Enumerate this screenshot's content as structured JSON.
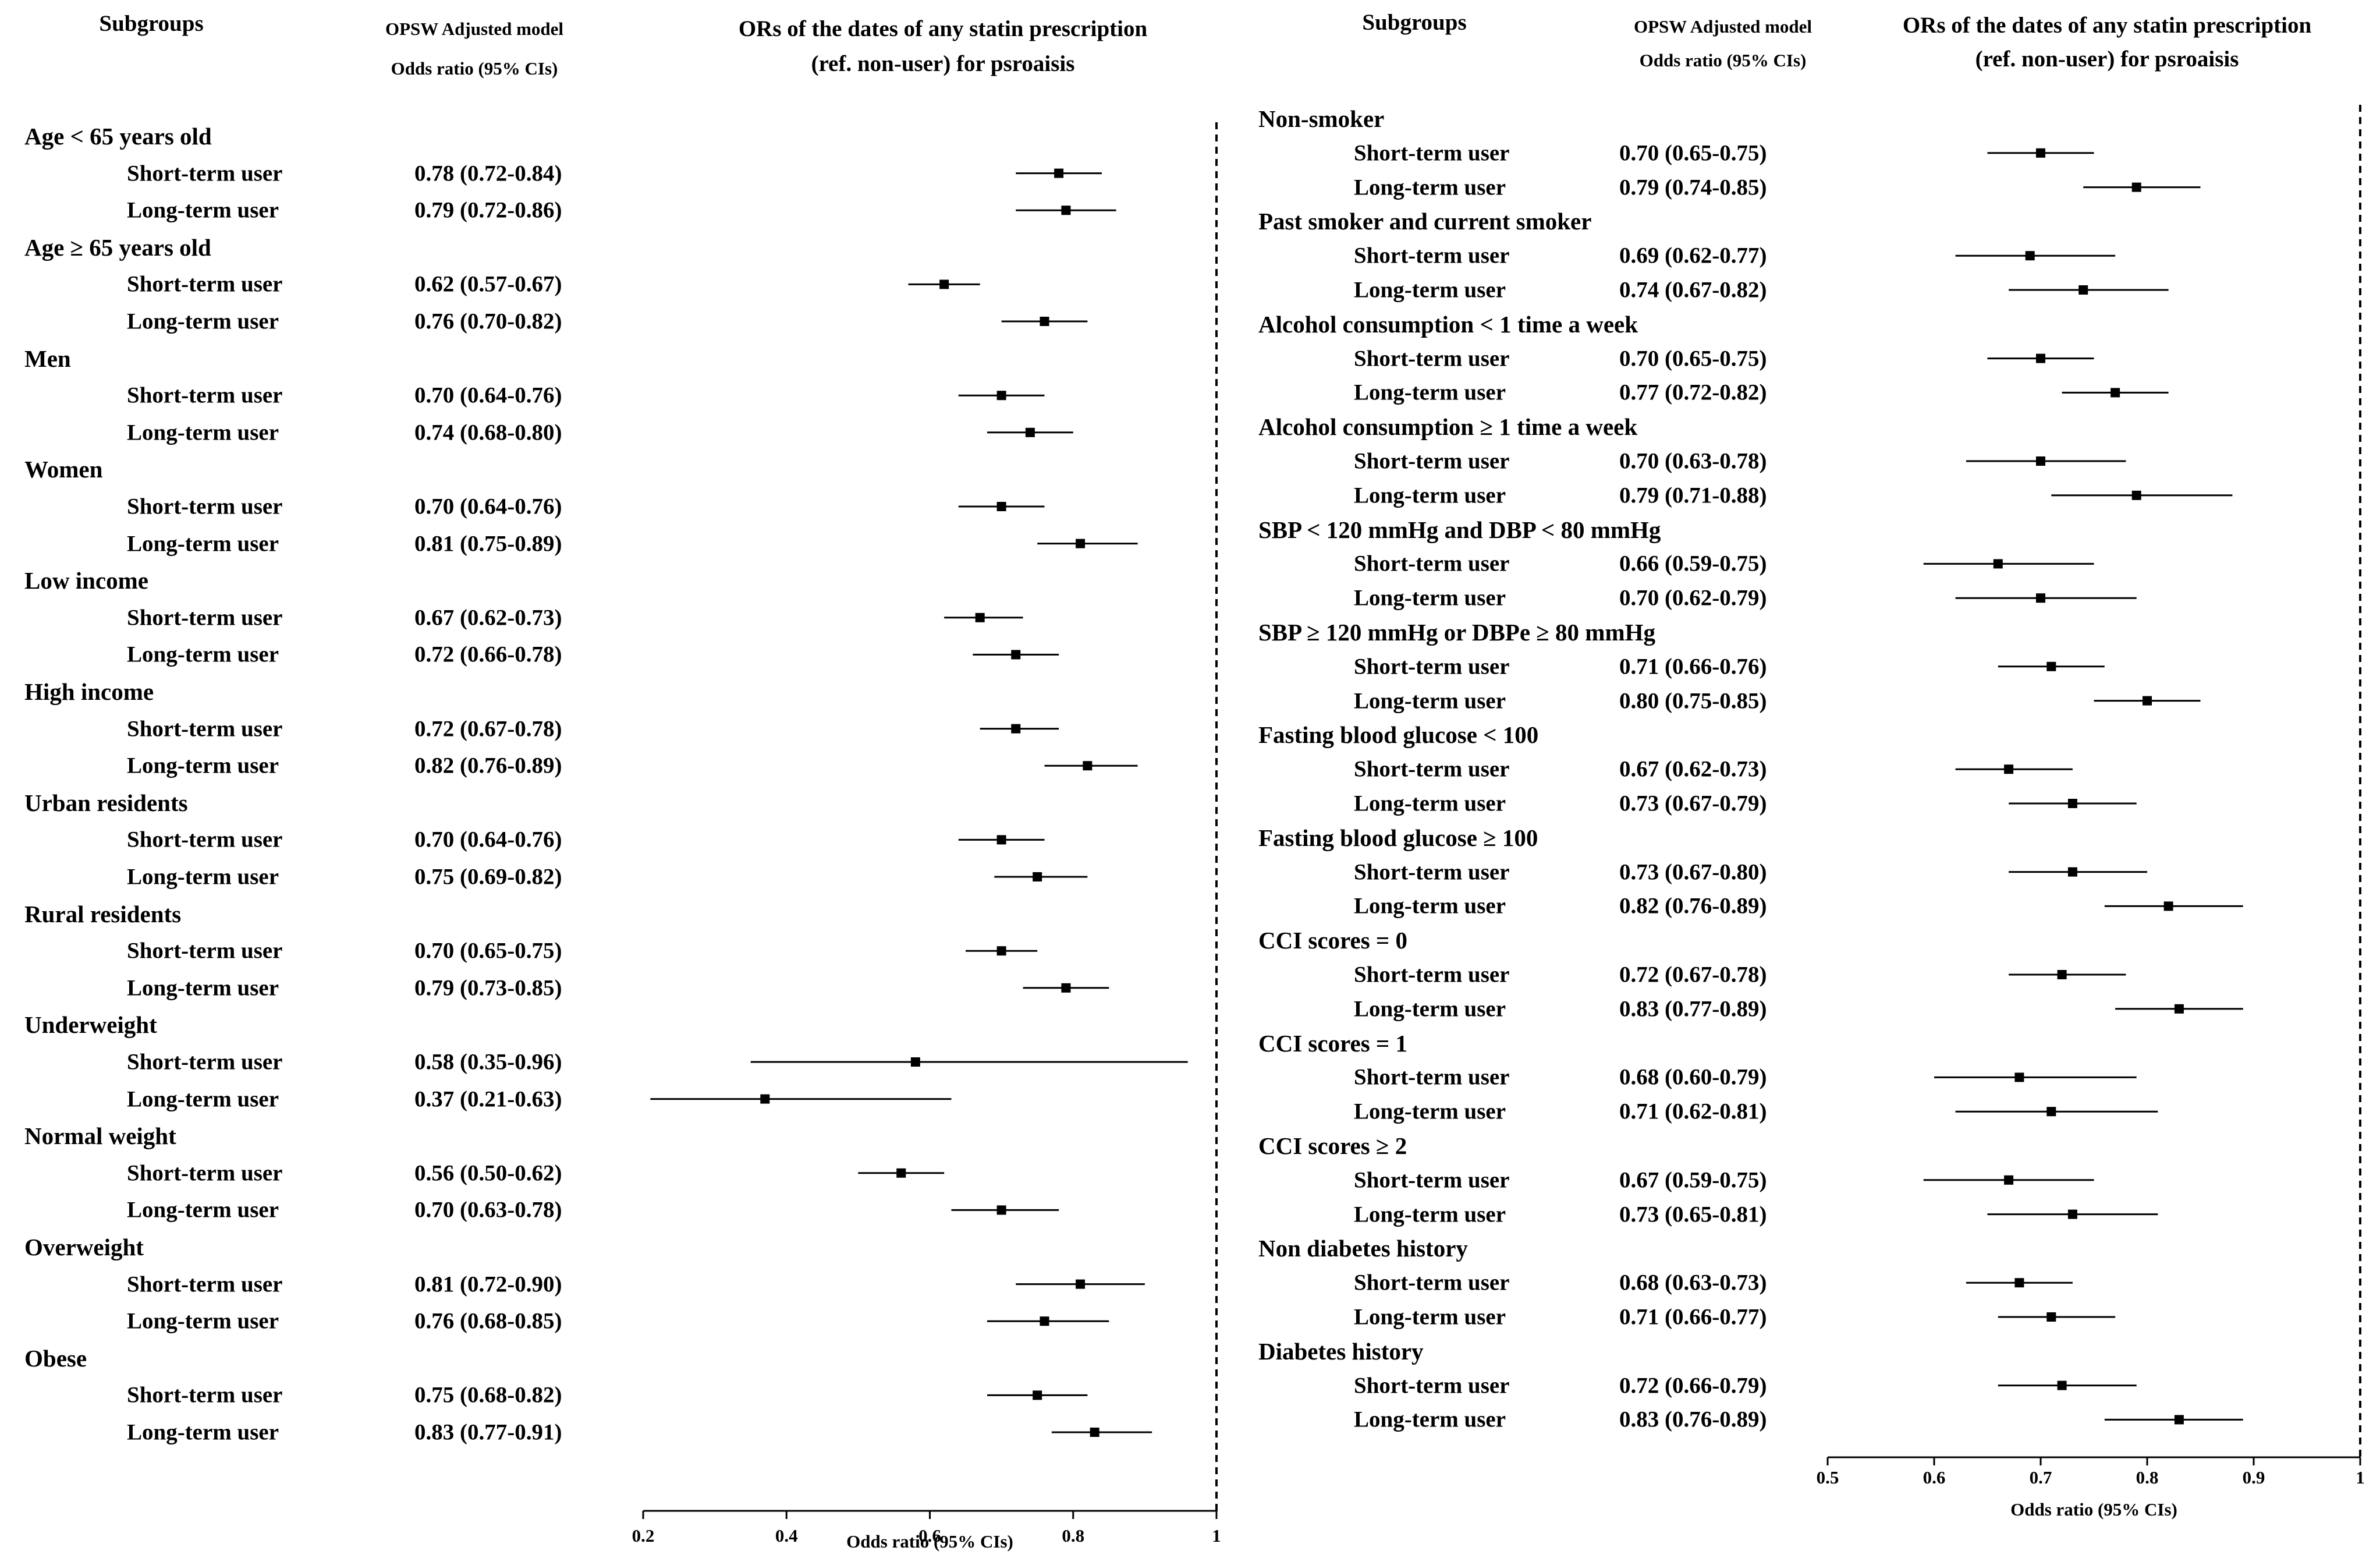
{
  "chart_data": [
    {
      "type": "forest",
      "header": {
        "subgroups": "Subgroups",
        "model_line1": "OPSW Adjusted model",
        "model_line2": "Odds ratio (95% CIs)",
        "chart_line1": "ORs of the dates of any statin prescription",
        "chart_line2": "(ref. non-user) for psroaisis"
      },
      "xlabel": "Odds ratio (95% CIs)",
      "xlim": [
        0.2,
        1.0
      ],
      "xticks": [
        0.2,
        0.4,
        0.6,
        0.8,
        1.0
      ],
      "xtick_labels": [
        "0.2",
        "0.4",
        "0.6",
        "0.8",
        "1"
      ],
      "reference_line": 1.0,
      "groups": [
        {
          "name": "Age < 65 years old",
          "rows": [
            {
              "label": "Short-term user",
              "text": "0.78 (0.72-0.84)",
              "or": 0.78,
              "lo": 0.72,
              "hi": 0.84
            },
            {
              "label": "Long-term user",
              "text": "0.79 (0.72-0.86)",
              "or": 0.79,
              "lo": 0.72,
              "hi": 0.86
            }
          ]
        },
        {
          "name": "Age ≥ 65 years old",
          "rows": [
            {
              "label": "Short-term user",
              "text": "0.62 (0.57-0.67)",
              "or": 0.62,
              "lo": 0.57,
              "hi": 0.67
            },
            {
              "label": "Long-term user",
              "text": "0.76 (0.70-0.82)",
              "or": 0.76,
              "lo": 0.7,
              "hi": 0.82
            }
          ]
        },
        {
          "name": "Men",
          "rows": [
            {
              "label": "Short-term user",
              "text": "0.70 (0.64-0.76)",
              "or": 0.7,
              "lo": 0.64,
              "hi": 0.76
            },
            {
              "label": "Long-term user",
              "text": "0.74 (0.68-0.80)",
              "or": 0.74,
              "lo": 0.68,
              "hi": 0.8
            }
          ]
        },
        {
          "name": "Women",
          "rows": [
            {
              "label": "Short-term user",
              "text": "0.70 (0.64-0.76)",
              "or": 0.7,
              "lo": 0.64,
              "hi": 0.76
            },
            {
              "label": "Long-term user",
              "text": "0.81 (0.75-0.89)",
              "or": 0.81,
              "lo": 0.75,
              "hi": 0.89
            }
          ]
        },
        {
          "name": "Low income",
          "rows": [
            {
              "label": "Short-term user",
              "text": "0.67 (0.62-0.73)",
              "or": 0.67,
              "lo": 0.62,
              "hi": 0.73
            },
            {
              "label": "Long-term user",
              "text": "0.72 (0.66-0.78)",
              "or": 0.72,
              "lo": 0.66,
              "hi": 0.78
            }
          ]
        },
        {
          "name": "High income",
          "rows": [
            {
              "label": "Short-term user",
              "text": "0.72 (0.67-0.78)",
              "or": 0.72,
              "lo": 0.67,
              "hi": 0.78
            },
            {
              "label": "Long-term user",
              "text": "0.82 (0.76-0.89)",
              "or": 0.82,
              "lo": 0.76,
              "hi": 0.89
            }
          ]
        },
        {
          "name": "Urban residents",
          "rows": [
            {
              "label": "Short-term user",
              "text": "0.70 (0.64-0.76)",
              "or": 0.7,
              "lo": 0.64,
              "hi": 0.76
            },
            {
              "label": "Long-term user",
              "text": "0.75 (0.69-0.82)",
              "or": 0.75,
              "lo": 0.69,
              "hi": 0.82
            }
          ]
        },
        {
          "name": "Rural residents",
          "rows": [
            {
              "label": "Short-term user",
              "text": "0.70 (0.65-0.75)",
              "or": 0.7,
              "lo": 0.65,
              "hi": 0.75
            },
            {
              "label": "Long-term user",
              "text": "0.79 (0.73-0.85)",
              "or": 0.79,
              "lo": 0.73,
              "hi": 0.85
            }
          ]
        },
        {
          "name": "Underweight",
          "rows": [
            {
              "label": "Short-term user",
              "text": "0.58 (0.35-0.96)",
              "or": 0.58,
              "lo": 0.35,
              "hi": 0.96
            },
            {
              "label": "Long-term user",
              "text": "0.37 (0.21-0.63)",
              "or": 0.37,
              "lo": 0.21,
              "hi": 0.63
            }
          ]
        },
        {
          "name": "Normal weight",
          "rows": [
            {
              "label": "Short-term user",
              "text": "0.56 (0.50-0.62)",
              "or": 0.56,
              "lo": 0.5,
              "hi": 0.62
            },
            {
              "label": "Long-term user",
              "text": "0.70 (0.63-0.78)",
              "or": 0.7,
              "lo": 0.63,
              "hi": 0.78
            }
          ]
        },
        {
          "name": "Overweight",
          "rows": [
            {
              "label": "Short-term user",
              "text": "0.81 (0.72-0.90)",
              "or": 0.81,
              "lo": 0.72,
              "hi": 0.9
            },
            {
              "label": "Long-term user",
              "text": "0.76 (0.68-0.85)",
              "or": 0.76,
              "lo": 0.68,
              "hi": 0.85
            }
          ]
        },
        {
          "name": "Obese",
          "rows": [
            {
              "label": "Short-term user",
              "text": "0.75 (0.68-0.82)",
              "or": 0.75,
              "lo": 0.68,
              "hi": 0.82
            },
            {
              "label": "Long-term user",
              "text": "0.83 (0.77-0.91)",
              "or": 0.83,
              "lo": 0.77,
              "hi": 0.91
            }
          ]
        }
      ]
    },
    {
      "type": "forest",
      "header": {
        "subgroups": "Subgroups",
        "model_line1": "OPSW Adjusted model",
        "model_line2": "Odds ratio (95% CIs)",
        "chart_line1": "ORs of the dates of any statin prescription",
        "chart_line2": "(ref. non-user) for psroaisis"
      },
      "xlabel": "Odds ratio (95% CIs)",
      "xlim": [
        0.5,
        1.0
      ],
      "xticks": [
        0.5,
        0.6,
        0.7,
        0.8,
        0.9,
        1.0
      ],
      "xtick_labels": [
        "0.5",
        "0.6",
        "0.7",
        "0.8",
        "0.9",
        "1"
      ],
      "reference_line": 1.0,
      "groups": [
        {
          "name": "Non-smoker",
          "rows": [
            {
              "label": "Short-term user",
              "text": "0.70 (0.65-0.75)",
              "or": 0.7,
              "lo": 0.65,
              "hi": 0.75
            },
            {
              "label": "Long-term user",
              "text": "0.79 (0.74-0.85)",
              "or": 0.79,
              "lo": 0.74,
              "hi": 0.85
            }
          ]
        },
        {
          "name": "Past smoker and current smoker",
          "rows": [
            {
              "label": "Short-term user",
              "text": "0.69 (0.62-0.77)",
              "or": 0.69,
              "lo": 0.62,
              "hi": 0.77
            },
            {
              "label": "Long-term user",
              "text": "0.74 (0.67-0.82)",
              "or": 0.74,
              "lo": 0.67,
              "hi": 0.82
            }
          ]
        },
        {
          "name": "Alcohol consumption < 1 time a week",
          "rows": [
            {
              "label": "Short-term user",
              "text": "0.70 (0.65-0.75)",
              "or": 0.7,
              "lo": 0.65,
              "hi": 0.75
            },
            {
              "label": "Long-term user",
              "text": "0.77 (0.72-0.82)",
              "or": 0.77,
              "lo": 0.72,
              "hi": 0.82
            }
          ]
        },
        {
          "name": "Alcohol consumption ≥ 1 time a week",
          "rows": [
            {
              "label": "Short-term user",
              "text": "0.70 (0.63-0.78)",
              "or": 0.7,
              "lo": 0.63,
              "hi": 0.78
            },
            {
              "label": "Long-term user",
              "text": "0.79 (0.71-0.88)",
              "or": 0.79,
              "lo": 0.71,
              "hi": 0.88
            }
          ]
        },
        {
          "name": "SBP < 120 mmHg and DBP < 80 mmHg",
          "rows": [
            {
              "label": "Short-term user",
              "text": "0.66 (0.59-0.75)",
              "or": 0.66,
              "lo": 0.59,
              "hi": 0.75
            },
            {
              "label": "Long-term user",
              "text": "0.70 (0.62-0.79)",
              "or": 0.7,
              "lo": 0.62,
              "hi": 0.79
            }
          ]
        },
        {
          "name": "SBP ≥ 120 mmHg or DBPe ≥ 80 mmHg",
          "rows": [
            {
              "label": "Short-term user",
              "text": "0.71 (0.66-0.76)",
              "or": 0.71,
              "lo": 0.66,
              "hi": 0.76
            },
            {
              "label": "Long-term user",
              "text": "0.80 (0.75-0.85)",
              "or": 0.8,
              "lo": 0.75,
              "hi": 0.85
            }
          ]
        },
        {
          "name": "Fasting blood glucose < 100",
          "rows": [
            {
              "label": "Short-term user",
              "text": "0.67 (0.62-0.73)",
              "or": 0.67,
              "lo": 0.62,
              "hi": 0.73
            },
            {
              "label": "Long-term user",
              "text": "0.73 (0.67-0.79)",
              "or": 0.73,
              "lo": 0.67,
              "hi": 0.79
            }
          ]
        },
        {
          "name": "Fasting blood glucose ≥ 100",
          "rows": [
            {
              "label": "Short-term user",
              "text": "0.73 (0.67-0.80)",
              "or": 0.73,
              "lo": 0.67,
              "hi": 0.8
            },
            {
              "label": "Long-term user",
              "text": "0.82 (0.76-0.89)",
              "or": 0.82,
              "lo": 0.76,
              "hi": 0.89
            }
          ]
        },
        {
          "name": "CCI scores = 0",
          "rows": [
            {
              "label": "Short-term user",
              "text": "0.72 (0.67-0.78)",
              "or": 0.72,
              "lo": 0.67,
              "hi": 0.78
            },
            {
              "label": "Long-term user",
              "text": "0.83 (0.77-0.89)",
              "or": 0.83,
              "lo": 0.77,
              "hi": 0.89
            }
          ]
        },
        {
          "name": "CCI scores = 1",
          "rows": [
            {
              "label": "Short-term user",
              "text": "0.68 (0.60-0.79)",
              "or": 0.68,
              "lo": 0.6,
              "hi": 0.79
            },
            {
              "label": "Long-term user",
              "text": "0.71 (0.62-0.81)",
              "or": 0.71,
              "lo": 0.62,
              "hi": 0.81
            }
          ]
        },
        {
          "name": "CCI scores ≥ 2",
          "rows": [
            {
              "label": "Short-term user",
              "text": "0.67 (0.59-0.75)",
              "or": 0.67,
              "lo": 0.59,
              "hi": 0.75
            },
            {
              "label": "Long-term user",
              "text": "0.73 (0.65-0.81)",
              "or": 0.73,
              "lo": 0.65,
              "hi": 0.81
            }
          ]
        },
        {
          "name": "Non diabetes history",
          "rows": [
            {
              "label": "Short-term user",
              "text": "0.68 (0.63-0.73)",
              "or": 0.68,
              "lo": 0.63,
              "hi": 0.73
            },
            {
              "label": "Long-term user",
              "text": "0.71 (0.66-0.77)",
              "or": 0.71,
              "lo": 0.66,
              "hi": 0.77
            }
          ]
        },
        {
          "name": "Diabetes history",
          "rows": [
            {
              "label": "Short-term user",
              "text": "0.72 (0.66-0.79)",
              "or": 0.72,
              "lo": 0.66,
              "hi": 0.79
            },
            {
              "label": "Long-term user",
              "text": "0.83 (0.76-0.89)",
              "or": 0.83,
              "lo": 0.76,
              "hi": 0.89
            }
          ]
        }
      ]
    }
  ]
}
